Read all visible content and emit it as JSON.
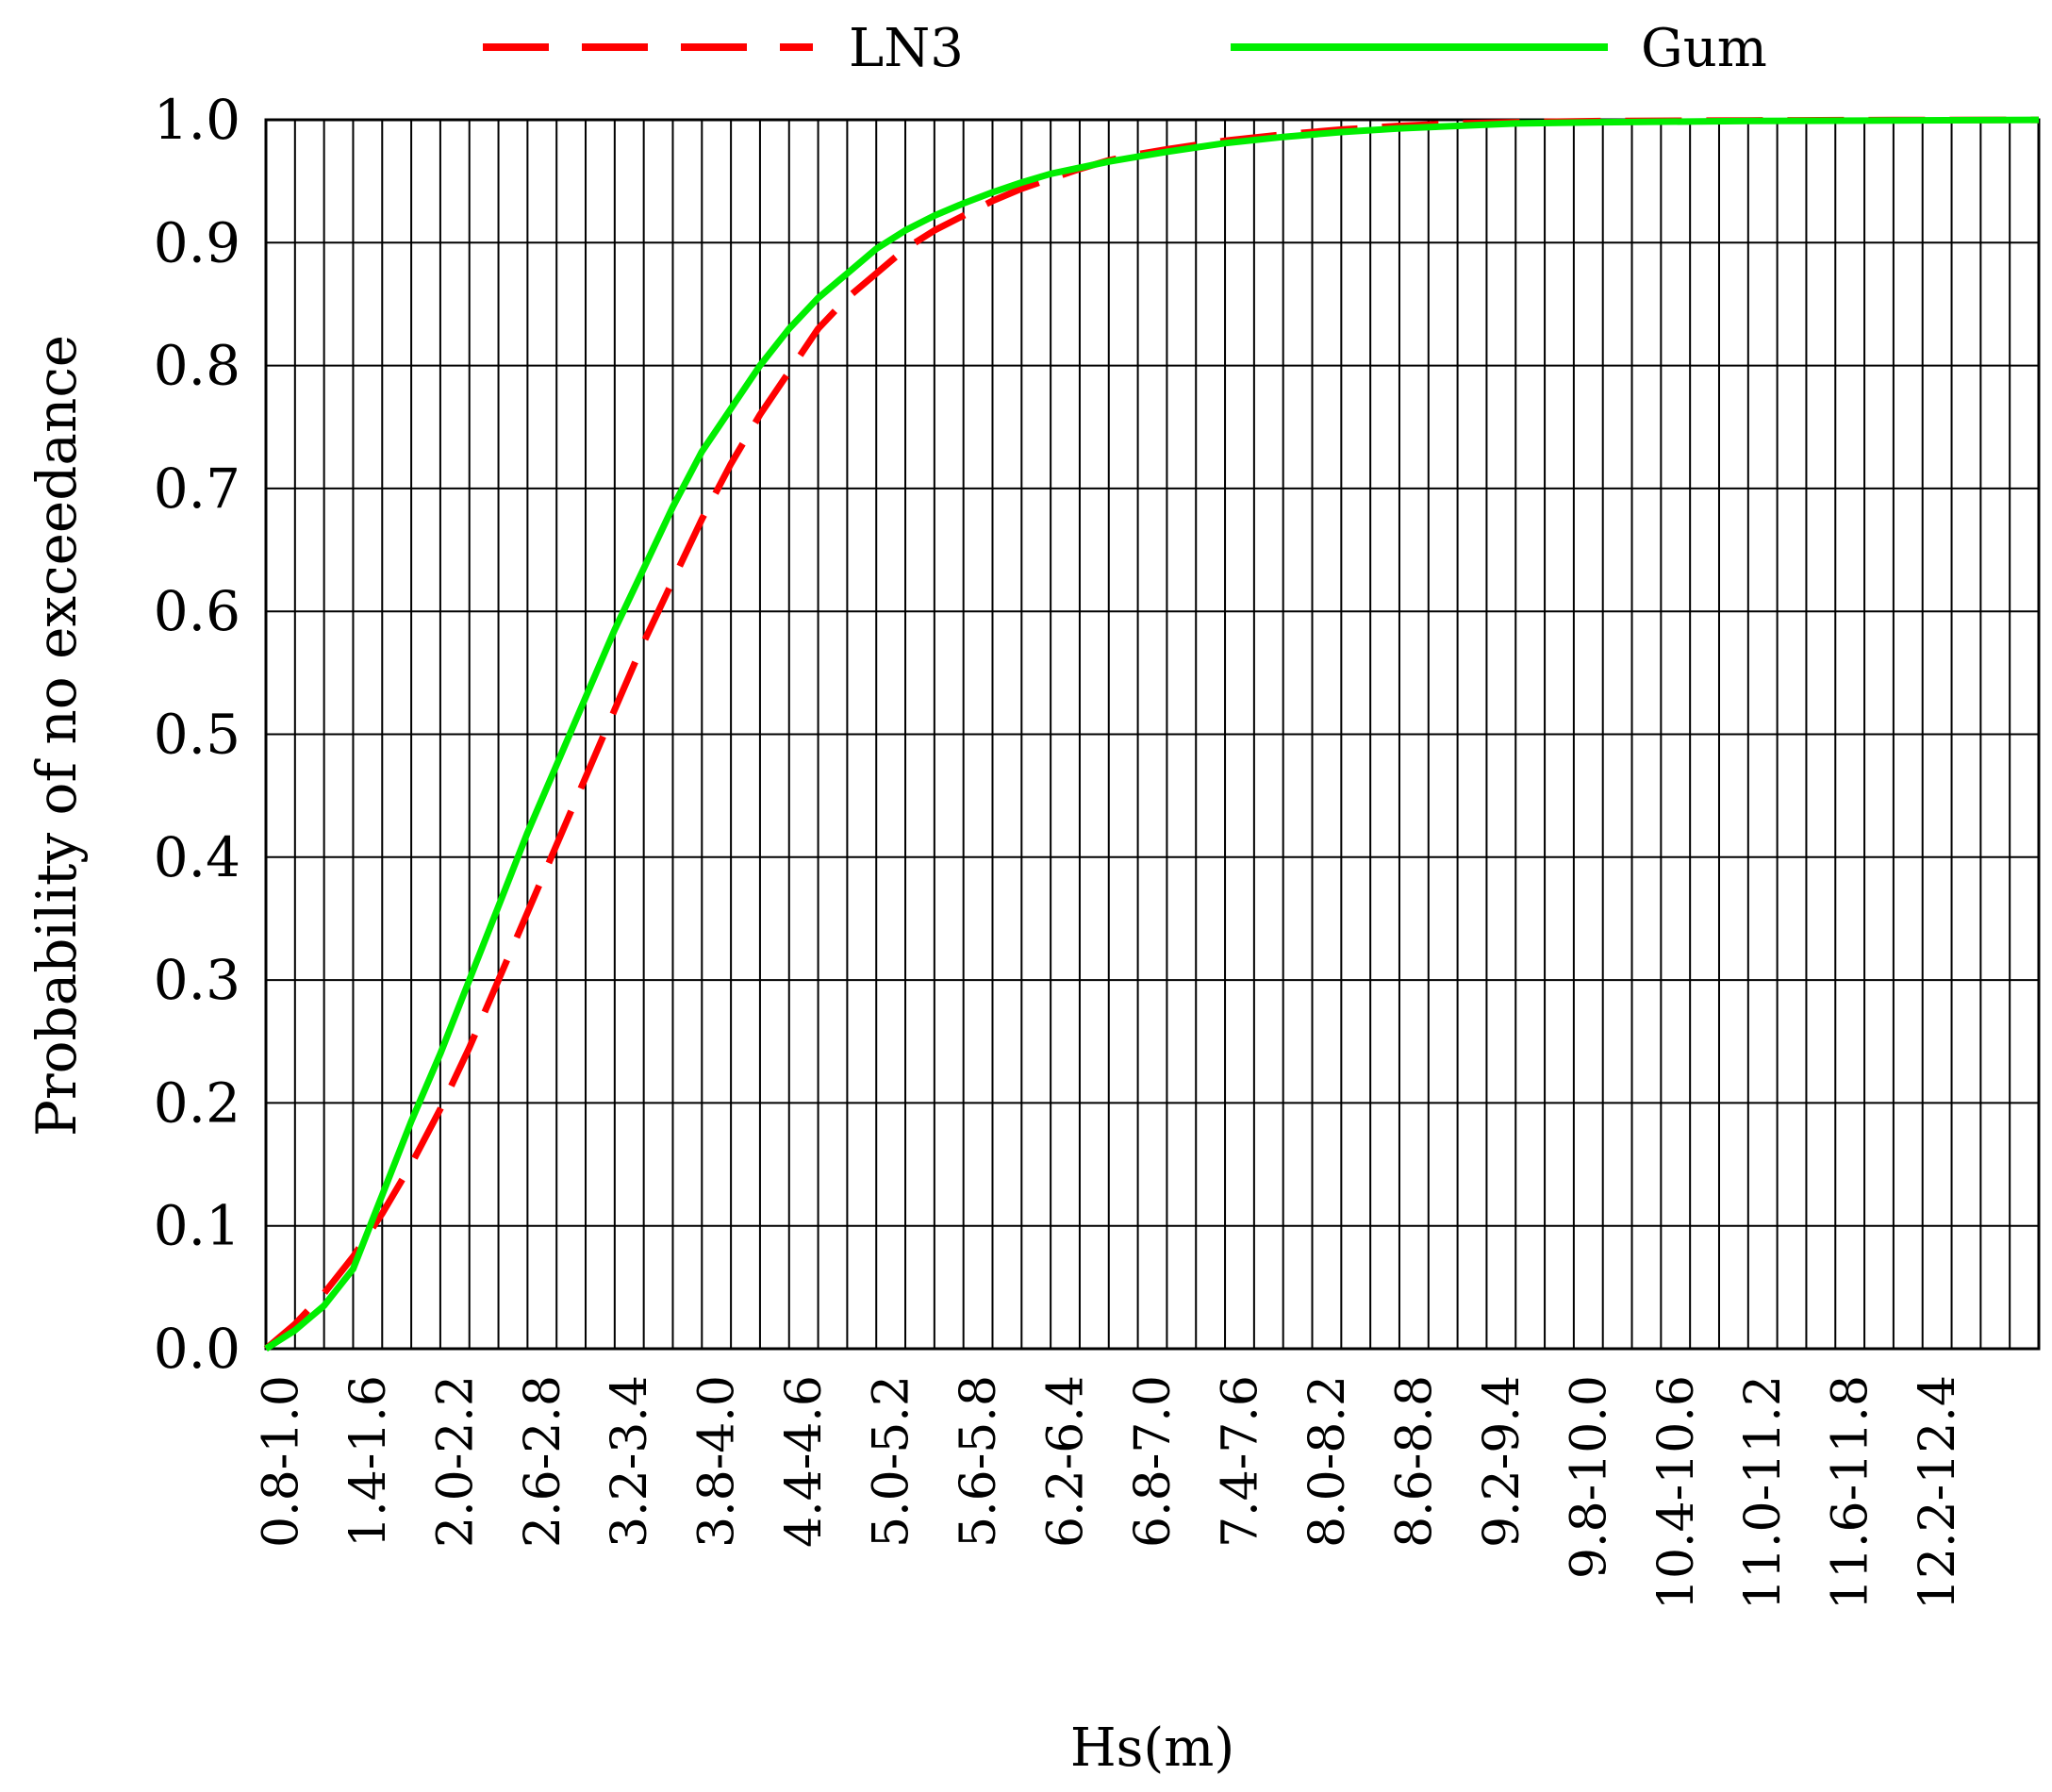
{
  "chart_data": {
    "type": "line",
    "xlabel": "Hs(m)",
    "ylabel": "Probability of no exceedance",
    "ylim": [
      0.0,
      1.0
    ],
    "xlim": [
      0.8,
      13.0
    ],
    "grid": true,
    "legend_position": "top",
    "y_ticks": [
      "0.0",
      "0.1",
      "0.2",
      "0.3",
      "0.4",
      "0.5",
      "0.6",
      "0.7",
      "0.8",
      "0.9",
      "1.0"
    ],
    "x_tick_labels": [
      {
        "label": "0.8-1.0",
        "x": 0.9
      },
      {
        "label": "1.4-1.6",
        "x": 1.5
      },
      {
        "label": "2.0-2.2",
        "x": 2.1
      },
      {
        "label": "2.6-2.8",
        "x": 2.7
      },
      {
        "label": "3.2-3.4",
        "x": 3.3
      },
      {
        "label": "3.8-4.0",
        "x": 3.9
      },
      {
        "label": "4.4-4.6",
        "x": 4.5
      },
      {
        "label": "5.0-5.2",
        "x": 5.1
      },
      {
        "label": "5.6-5.8",
        "x": 5.7
      },
      {
        "label": "6.2-6.4",
        "x": 6.3
      },
      {
        "label": "6.8-7.0",
        "x": 6.9
      },
      {
        "label": "7.4-7.6",
        "x": 7.5
      },
      {
        "label": "8.0-8.2",
        "x": 8.1
      },
      {
        "label": "8.6-8.8",
        "x": 8.7
      },
      {
        "label": "9.2-9.4",
        "x": 9.3
      },
      {
        "label": "9.8-10.0",
        "x": 9.9
      },
      {
        "label": "10.4-10.6",
        "x": 10.5
      },
      {
        "label": "11.0-11.2",
        "x": 11.1
      },
      {
        "label": "11.6-11.8",
        "x": 11.7
      },
      {
        "label": "12.2-12.4",
        "x": 12.3
      }
    ],
    "series": [
      {
        "name": "LN3",
        "color": "#ff0000",
        "dash": true,
        "x": [
          0.8,
          1.0,
          1.2,
          1.4,
          1.6,
          1.8,
          2.0,
          2.2,
          2.4,
          2.6,
          2.8,
          3.0,
          3.2,
          3.4,
          3.6,
          3.8,
          4.0,
          4.2,
          4.4,
          4.6,
          4.8,
          5.0,
          5.2,
          5.4,
          5.6,
          5.8,
          6.0,
          6.2,
          6.4,
          6.6,
          6.8,
          7.0,
          7.4,
          7.8,
          8.2,
          8.6,
          9.0,
          9.4,
          10.0,
          11.0,
          12.0,
          13.0
        ],
        "y": [
          0.0,
          0.02,
          0.045,
          0.075,
          0.11,
          0.15,
          0.195,
          0.245,
          0.3,
          0.355,
          0.41,
          0.465,
          0.52,
          0.575,
          0.625,
          0.675,
          0.72,
          0.76,
          0.795,
          0.83,
          0.855,
          0.875,
          0.895,
          0.91,
          0.922,
          0.934,
          0.944,
          0.952,
          0.96,
          0.967,
          0.972,
          0.976,
          0.983,
          0.988,
          0.992,
          0.995,
          0.997,
          0.998,
          0.999,
          0.9995,
          0.9998,
          0.9999
        ]
      },
      {
        "name": "Gum",
        "color": "#00ee00",
        "dash": false,
        "x": [
          0.8,
          1.0,
          1.2,
          1.4,
          1.6,
          1.8,
          2.0,
          2.2,
          2.4,
          2.6,
          2.8,
          3.0,
          3.2,
          3.4,
          3.6,
          3.8,
          4.0,
          4.2,
          4.4,
          4.6,
          4.8,
          5.0,
          5.2,
          5.4,
          5.6,
          5.8,
          6.0,
          6.2,
          6.4,
          6.6,
          6.8,
          7.0,
          7.4,
          7.8,
          8.2,
          8.6,
          9.0,
          9.4,
          10.0,
          11.0,
          12.0,
          13.0
        ],
        "y": [
          0.0,
          0.015,
          0.035,
          0.065,
          0.125,
          0.185,
          0.24,
          0.3,
          0.36,
          0.42,
          0.475,
          0.53,
          0.585,
          0.635,
          0.685,
          0.73,
          0.765,
          0.8,
          0.83,
          0.855,
          0.875,
          0.895,
          0.91,
          0.922,
          0.932,
          0.941,
          0.949,
          0.956,
          0.961,
          0.966,
          0.97,
          0.974,
          0.981,
          0.986,
          0.99,
          0.993,
          0.995,
          0.997,
          0.998,
          0.999,
          0.9995,
          0.9999
        ]
      }
    ]
  }
}
